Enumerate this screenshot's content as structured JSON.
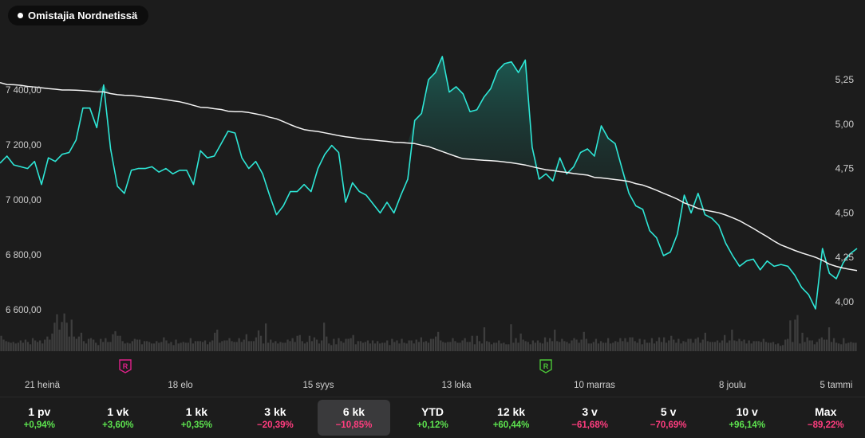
{
  "header": {
    "badge_label": "Omistajia Nordnetissä"
  },
  "chart_data": {
    "type": "line",
    "left_axis": {
      "ticks": [
        "7 400,00",
        "7 200,00",
        "7 000,00",
        "6 800,00",
        "6 600,00"
      ],
      "values": [
        7400,
        7200,
        7000,
        6800,
        6600
      ],
      "range": [
        6570,
        7460
      ]
    },
    "right_axis": {
      "ticks": [
        "5,25",
        "5,00",
        "4,75",
        "4,50",
        "4,25",
        "4,00"
      ],
      "values": [
        5.25,
        5.0,
        4.75,
        4.5,
        4.25,
        4.0
      ],
      "range": [
        3.93,
        5.43
      ]
    },
    "x_ticks": [
      "21 heinä",
      "18 elo",
      "15 syys",
      "13 loka",
      "10 marras",
      "8 joulu",
      "5 tammi"
    ],
    "series": [
      {
        "axis": "right",
        "color": "#2ee6d6",
        "values": [
          4.78,
          4.82,
          4.77,
          4.76,
          4.75,
          4.79,
          4.66,
          4.81,
          4.79,
          4.83,
          4.84,
          4.91,
          5.09,
          5.09,
          4.98,
          5.22,
          4.86,
          4.65,
          4.61,
          4.74,
          4.75,
          4.75,
          4.76,
          4.73,
          4.75,
          4.72,
          4.74,
          4.74,
          4.66,
          4.85,
          4.81,
          4.82,
          4.89,
          4.96,
          4.95,
          4.81,
          4.75,
          4.79,
          4.72,
          4.6,
          4.49,
          4.54,
          4.62,
          4.62,
          4.66,
          4.62,
          4.75,
          4.83,
          4.88,
          4.84,
          4.56,
          4.67,
          4.62,
          4.6,
          4.55,
          4.5,
          4.56,
          4.5,
          4.6,
          4.69,
          5.02,
          5.06,
          5.25,
          5.29,
          5.38,
          5.18,
          5.21,
          5.17,
          5.07,
          5.08,
          5.15,
          5.2,
          5.3,
          5.34,
          5.35,
          5.29,
          5.36,
          4.87,
          4.69,
          4.72,
          4.68,
          4.81,
          4.72,
          4.76,
          4.84,
          4.86,
          4.82,
          4.99,
          4.92,
          4.89,
          4.75,
          4.61,
          4.54,
          4.52,
          4.4,
          4.36,
          4.26,
          4.28,
          4.38,
          4.6,
          4.5,
          4.61,
          4.49,
          4.47,
          4.43,
          4.33,
          4.26,
          4.2,
          4.23,
          4.24,
          4.18,
          4.23,
          4.2,
          4.21,
          4.2,
          4.15,
          4.08,
          4.04,
          3.96,
          4.3,
          4.16,
          4.13,
          4.22,
          4.27,
          4.3
        ]
      },
      {
        "axis": "left",
        "color": "#f2f2f2",
        "values": [
          7427,
          7420,
          7419,
          7417,
          7413,
          7411,
          7408,
          7405,
          7403,
          7400,
          7400,
          7399,
          7398,
          7396,
          7393,
          7393,
          7387,
          7383,
          7381,
          7380,
          7377,
          7374,
          7372,
          7369,
          7365,
          7361,
          7357,
          7351,
          7344,
          7337,
          7336,
          7332,
          7329,
          7323,
          7321,
          7321,
          7318,
          7313,
          7308,
          7301,
          7295,
          7285,
          7274,
          7264,
          7256,
          7252,
          7249,
          7244,
          7239,
          7234,
          7230,
          7227,
          7223,
          7220,
          7218,
          7215,
          7213,
          7210,
          7209,
          7207,
          7205,
          7199,
          7194,
          7185,
          7176,
          7167,
          7158,
          7150,
          7148,
          7146,
          7144,
          7143,
          7141,
          7138,
          7135,
          7131,
          7127,
          7121,
          7115,
          7110,
          7107,
          7103,
          7100,
          7096,
          7093,
          7090,
          7082,
          7080,
          7077,
          7074,
          7071,
          7067,
          7059,
          7054,
          7045,
          7035,
          7024,
          7014,
          7003,
          6989,
          6980,
          6969,
          6963,
          6958,
          6953,
          6945,
          6935,
          6924,
          6910,
          6896,
          6881,
          6866,
          6850,
          6836,
          6826,
          6816,
          6807,
          6799,
          6791,
          6780,
          6766,
          6758,
          6752,
          6747,
          6743
        ]
      }
    ],
    "volume": [
      20,
      15,
      13,
      12,
      11,
      12,
      10,
      11,
      14,
      11,
      15,
      12,
      9,
      17,
      14,
      12,
      14,
      10,
      15,
      19,
      15,
      23,
      37,
      48,
      28,
      38,
      49,
      37,
      19,
      41,
      19,
      16,
      19,
      24,
      13,
      10,
      16,
      17,
      15,
      11,
      8,
      16,
      12,
      17,
      12,
      12,
      22,
      26,
      20,
      20,
      13,
      10,
      11,
      10,
      13,
      16,
      15,
      15,
      9,
      13,
      13,
      12,
      10,
      10,
      13,
      11,
      12,
      18,
      14,
      10,
      12,
      8,
      15,
      10,
      11,
      12,
      11,
      11,
      17,
      10,
      13,
      13,
      13,
      12,
      14,
      9,
      12,
      14,
      24,
      28,
      11,
      13,
      14,
      14,
      17,
      13,
      12,
      12,
      17,
      12,
      15,
      22,
      13,
      13,
      13,
      18,
      27,
      20,
      10,
      36,
      11,
      15,
      11,
      13,
      10,
      12,
      11,
      11,
      15,
      13,
      17,
      12,
      20,
      21,
      13,
      10,
      12,
      20,
      13,
      18,
      15,
      10,
      14,
      37,
      19,
      10,
      8,
      16,
      9,
      17,
      13,
      11,
      16,
      16,
      17,
      21,
      9,
      13,
      13,
      11,
      12,
      14,
      10,
      14,
      10,
      13,
      10,
      11,
      11,
      14,
      8,
      16,
      12,
      14,
      10,
      16,
      11,
      10,
      14,
      14,
      10,
      15,
      12,
      18,
      12,
      13,
      11,
      16,
      16,
      19,
      25,
      14,
      12,
      11,
      12,
      12,
      17,
      13,
      11,
      11,
      14,
      17,
      12,
      12,
      20,
      9,
      20,
      13,
      10,
      31,
      13,
      12,
      9,
      11,
      11,
      14,
      10,
      11,
      9,
      9,
      35,
      11,
      17,
      11,
      23,
      15,
      13,
      12,
      9,
      14,
      11,
      14,
      11,
      10,
      18,
      12,
      17,
      13,
      28,
      13,
      12,
      16,
      13,
      12,
      10,
      14,
      17,
      15,
      11,
      15,
      25,
      16,
      10,
      10,
      12,
      16,
      10,
      13,
      11,
      11,
      17,
      10,
      11,
      13,
      12,
      17,
      13,
      17,
      12,
      18,
      18,
      13,
      11,
      16,
      9,
      15,
      11,
      11,
      17,
      10,
      13,
      18,
      12,
      18,
      11,
      14,
      20,
      15,
      11,
      16,
      10,
      13,
      12,
      16,
      16,
      11,
      16,
      18,
      11,
      15,
      24,
      13,
      12,
      12,
      12,
      14,
      11,
      14,
      21,
      11,
      14,
      28,
      14,
      13,
      16,
      13,
      15,
      10,
      14,
      10,
      13,
      13,
      13,
      12,
      16,
      12,
      11,
      11,
      12,
      9,
      10,
      7,
      8,
      15,
      16,
      40,
      12,
      41,
      47,
      10,
      24,
      12,
      18,
      14,
      14,
      9,
      12,
      16,
      18,
      15,
      15,
      31,
      12,
      17,
      11,
      10,
      9,
      17,
      10,
      11,
      12,
      11,
      11
    ],
    "markers": [
      {
        "label": "R",
        "color": "#e0218a",
        "x_category": "21 heinä",
        "offset_days": 21
      },
      {
        "label": "R",
        "color": "#4cc838",
        "x_category": "13 loka",
        "offset_days": 24
      }
    ]
  },
  "periods": [
    {
      "label": "1 pv",
      "change": "+0,94%",
      "dir": "pos"
    },
    {
      "label": "1 vk",
      "change": "+3,60%",
      "dir": "pos"
    },
    {
      "label": "1 kk",
      "change": "+0,35%",
      "dir": "pos"
    },
    {
      "label": "3 kk",
      "change": "−20,39%",
      "dir": "neg"
    },
    {
      "label": "6 kk",
      "change": "−10,85%",
      "dir": "neg",
      "active": true
    },
    {
      "label": "YTD",
      "change": "+0,12%",
      "dir": "pos"
    },
    {
      "label": "12 kk",
      "change": "+60,44%",
      "dir": "pos"
    },
    {
      "label": "3 v",
      "change": "−61,68%",
      "dir": "neg"
    },
    {
      "label": "5 v",
      "change": "−70,69%",
      "dir": "neg"
    },
    {
      "label": "10 v",
      "change": "+96,14%",
      "dir": "pos"
    },
    {
      "label": "Max",
      "change": "−89,22%",
      "dir": "neg"
    }
  ]
}
